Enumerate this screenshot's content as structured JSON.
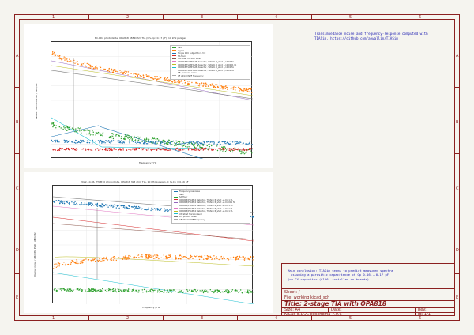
{
  "zones": {
    "columns": [
      "1",
      "2",
      "3",
      "4",
      "5",
      "6"
    ],
    "rows": [
      "A",
      "B",
      "C",
      "D",
      "E"
    ]
  },
  "plot_top": {
    "title": "BC-PD2 photodiode, OPA818 3882Ohm TIA (Cf+Cp=0.17 pF), 10 kHz pulsgen",
    "xlabel": "Frequency / Hz",
    "ylabel": "Noise / dBm/Hz   PSD / dBm/Hz",
    "legend": [
      {
        "label": "dark",
        "color": "#2ca02c"
      },
      {
        "label": "signal",
        "color": "#ff7f0e"
      },
      {
        "label": "Single 10U subject to 0.3 C",
        "color": "#1f77b4"
      },
      {
        "label": "SA floor",
        "color": "#d62728"
      },
      {
        "label": "Ultrafast Horizon level",
        "color": "#8c564b"
      },
      {
        "label": "OPA818 TIA/MTA2B detector, TIASim R_shot +/-0.01 fA",
        "color": "#e377c2"
      },
      {
        "label": "OPA818 TIA/MTA2B detector, TIASim R_shot +/-0.0001 fA",
        "color": "#bcbd22"
      },
      {
        "label": "OPA818 TIA/MTA2B detector, TIASim R_shot +/-0.01 fA",
        "color": "#17becf"
      },
      {
        "label": "OPA818 TIA/MTA2B detector, TIASim R_shot +/-0.01 fA",
        "color": "#9467bd"
      },
      {
        "label": "RF: pressure noise",
        "color": "#7f7f7f"
      },
      {
        "label": "CF 2014 DSPF Frequency",
        "color": "#aaaaaa"
      }
    ]
  },
  "plot_bottom": {
    "title": "2022-10-06, PTAM10 photodiode, OPA818 3k3 ohm TIA, 10 kHz pulsgen, C_f+Cp = 0.16 pF",
    "xlabel": "Frequency / Hz",
    "ylabel": "Output noise / dBm/Hz   PSD / dBm/Hz",
    "legend": [
      {
        "label": "Frequency response",
        "color": "#1f77b4"
      },
      {
        "label": "dark",
        "color": "#ff7f0e"
      },
      {
        "label": "SA floor",
        "color": "#2ca02c"
      },
      {
        "label": "OPA818/PTAM10 detector, TIASim R_shot +/-0.01 fA",
        "color": "#d62728"
      },
      {
        "label": "OPA818/PTAM10 detector, TIASim R_shot +/-0.0001 fA",
        "color": "#9467bd"
      },
      {
        "label": "OPA818/PTAM10 detector, TIASim R_shot +/-0.01 fA",
        "color": "#8c564b"
      },
      {
        "label": "OPA818/PTAM10 detector, TIASim R_shot +/-0.01 fA",
        "color": "#e377c2"
      },
      {
        "label": "OPA818/PTAM10 detector, TIASim R_shot +/-0.01 fA",
        "color": "#bcbd22"
      },
      {
        "label": "Ultrafast Horizon level",
        "color": "#17becf"
      },
      {
        "label": "RF: photon noise",
        "color": "#7f7f7f"
      },
      {
        "label": "CF 2014 DSPF Frequency",
        "color": "#aaaaaa"
      }
    ]
  },
  "notes": {
    "top_right_line1": "Transimpedance noise and frequency-response computed with",
    "top_right_line2": "TIASim. https://github.com/aewallin/TIASim",
    "conclusion_line1": "Main conclusion: TIASim seems to predict measured spectra",
    "conclusion_line2": "assuming a parasitic capacitance of Cp 0.16...0.17 pF",
    "conclusion_line3": "(no Cf capacitor (C126) installed on boards)"
  },
  "title_block": {
    "sheet": "Sheet: /",
    "file": "File: working.kicad_sch",
    "title": "Title: 2-stage TIA with OPA818",
    "size": "Size: A4",
    "date": "Date:",
    "rev": "Rev:",
    "app": "KiCad E.D.A.  eeschema 7.0.6",
    "id": "Id: 1/1"
  },
  "colors": {
    "frame": "#8b2020",
    "note_text": "#1b1bb0",
    "background": "#f5f4ef"
  }
}
